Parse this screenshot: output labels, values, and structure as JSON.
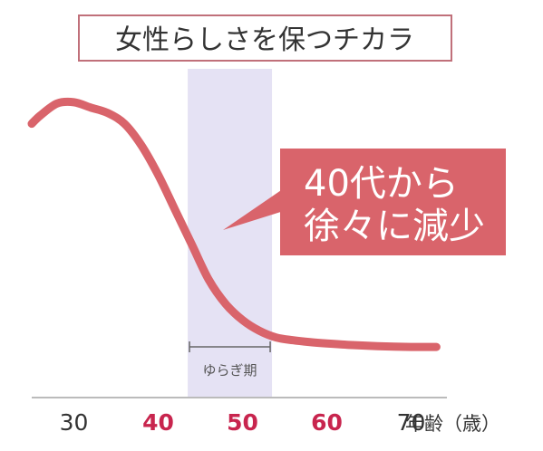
{
  "chart_data": {
    "type": "line",
    "title": "女性らしさを保つチカラ",
    "xlabel": "年齢（歳）",
    "ylabel": "",
    "xlim": [
      25,
      75
    ],
    "ylim": [
      0,
      1
    ],
    "ticks": [
      {
        "value": 30,
        "label": "30",
        "highlight": false
      },
      {
        "value": 40,
        "label": "40",
        "highlight": true
      },
      {
        "value": 50,
        "label": "50",
        "highlight": true
      },
      {
        "value": 60,
        "label": "60",
        "highlight": true
      },
      {
        "value": 70,
        "label": "70",
        "highlight": false
      }
    ],
    "series": [
      {
        "x": [
          25,
          26,
          28,
          30,
          32,
          34,
          36,
          38,
          40,
          42,
          44,
          46,
          48,
          50,
          52,
          54,
          56,
          58,
          60,
          63,
          66,
          70,
          73
        ],
        "y": [
          0.87,
          0.9,
          0.945,
          0.95,
          0.93,
          0.91,
          0.87,
          0.79,
          0.68,
          0.55,
          0.42,
          0.29,
          0.2,
          0.14,
          0.1,
          0.075,
          0.065,
          0.058,
          0.053,
          0.047,
          0.043,
          0.04,
          0.04
        ]
      }
    ],
    "band": {
      "from": 43.5,
      "to": 53.5,
      "label": "ゆらぎ期"
    },
    "callout": {
      "line1": "40代から",
      "line2": "徐々に減少"
    },
    "grid": false
  },
  "colors": {
    "curve": "#d9646b",
    "band": "#e5e2f4",
    "callout": "#d9646b",
    "title_border": "#c0707a",
    "highlight_tick": "#c8254e",
    "normal_tick": "#333333",
    "axis": "#bbbbbb"
  }
}
